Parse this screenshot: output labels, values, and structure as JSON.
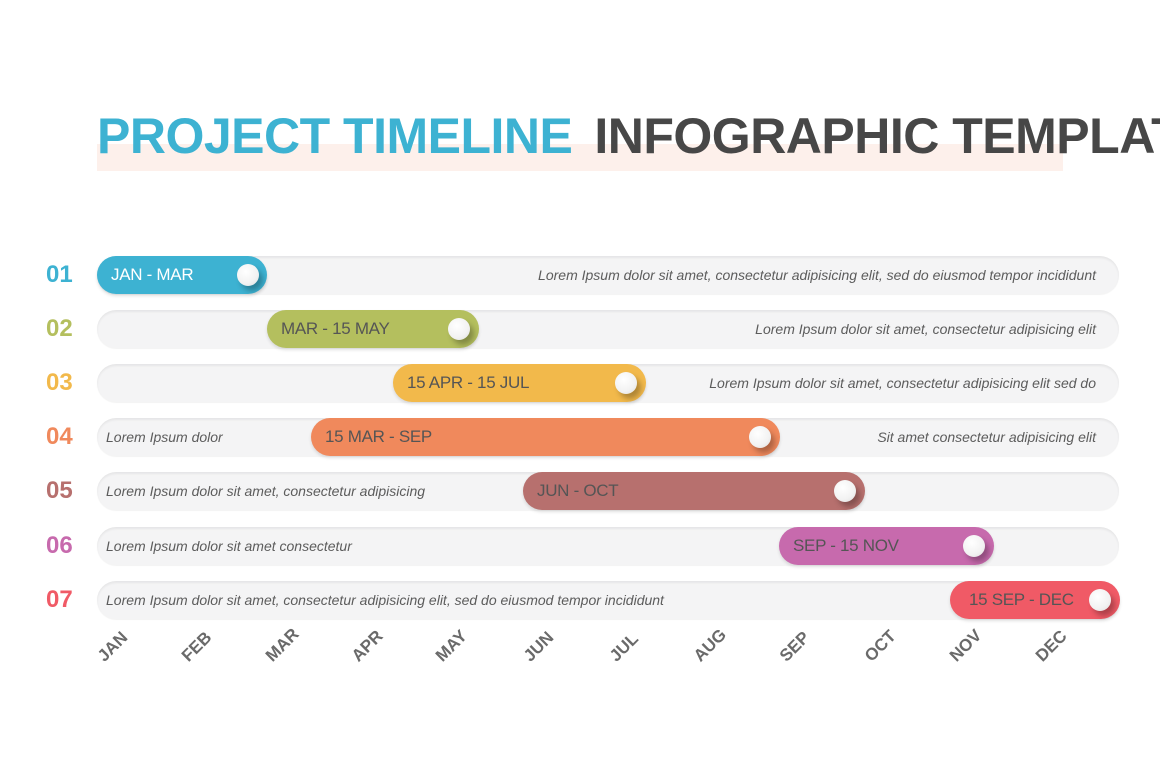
{
  "title": {
    "part1": "PROJECT TIMELINE",
    "part2": "INFOGRAPHIC TEMPLATE"
  },
  "colors": {
    "title_accent": "#3db2d2",
    "title_dark": "#474747",
    "rows": [
      "#3db2d2",
      "#b4bf5e",
      "#f2b94b",
      "#f0895c",
      "#b7706e",
      "#c76aad",
      "#f05a66"
    ]
  },
  "rows": [
    {
      "number": "01",
      "label": "JAN - MAR",
      "text_right": "Lorem Ipsum dolor sit amet, consectetur adipisicing elit, sed do eiusmod tempor incididunt",
      "text_left": ""
    },
    {
      "number": "02",
      "label": "MAR - 15 MAY",
      "text_right": "Lorem Ipsum dolor sit amet, consectetur adipisicing elit",
      "text_left": ""
    },
    {
      "number": "03",
      "label": "15 APR - 15 JUL",
      "text_right": "Lorem Ipsum dolor sit amet, consectetur adipisicing elit sed do",
      "text_left": ""
    },
    {
      "number": "04",
      "label": "15 MAR - SEP",
      "text_right": "Sit amet consectetur adipisicing elit",
      "text_left": "Lorem Ipsum dolor"
    },
    {
      "number": "05",
      "label": "JUN - OCT",
      "text_right": "",
      "text_left": "Lorem Ipsum dolor sit amet, consectetur adipisicing"
    },
    {
      "number": "06",
      "label": "SEP - 15 NOV",
      "text_right": "",
      "text_left": "Lorem Ipsum dolor sit amet consectetur"
    },
    {
      "number": "07",
      "label": "15 SEP - DEC",
      "text_right": "",
      "text_left": "Lorem Ipsum dolor sit amet, consectetur adipisicing elit, sed do eiusmod tempor incididunt"
    }
  ],
  "months": [
    "JAN",
    "FEB",
    "MAR",
    "APR",
    "MAY",
    "JUN",
    "JUL",
    "AUG",
    "SEP",
    "OCT",
    "NOV",
    "DEC"
  ]
}
